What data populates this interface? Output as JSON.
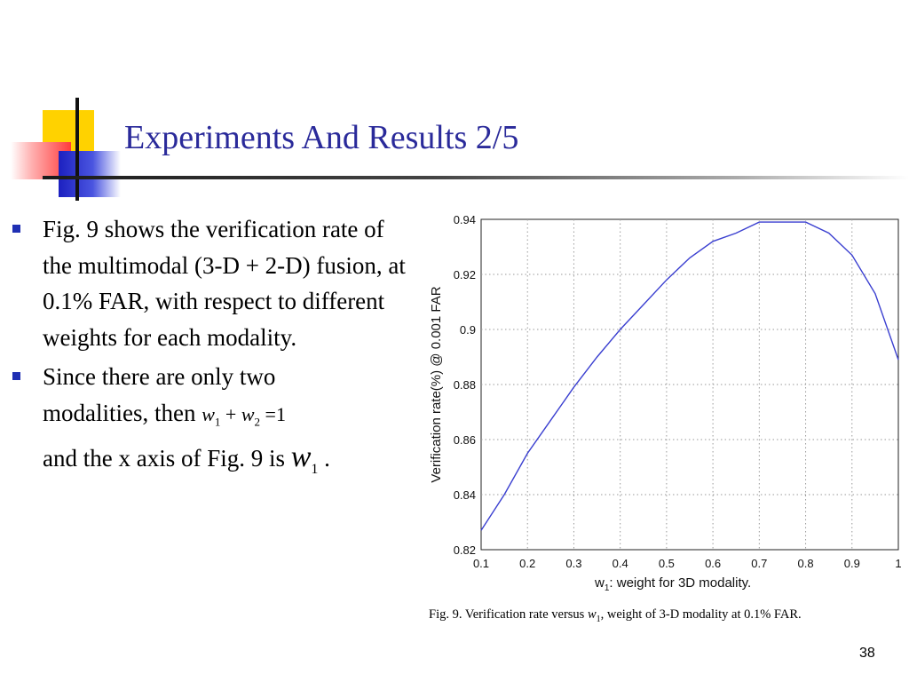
{
  "slide": {
    "title": "Experiments And Results 2/5",
    "page_number": "38"
  },
  "bullets": [
    {
      "text": "Fig. 9 shows the verification rate of the multimodal (3-D + 2-D) fusion, at 0.1% FAR, with respect to different weights for each modality."
    },
    {
      "line1": "Since there are only two",
      "line2_prefix": "modalities, then",
      "eq": {
        "var1": "w",
        "sub1": "1",
        "plus": "+",
        "var2": "w",
        "sub2": "2",
        "equals": "=",
        "rhs": "1"
      },
      "line3_prefix": "and the x axis of Fig. 9 is",
      "axis_var": "w",
      "axis_sub": "1",
      "line3_suffix": "."
    }
  ],
  "caption": {
    "prefix": "Fig. 9.   Verification rate versus",
    "var": "w",
    "sub": "1",
    "suffix": ", weight of 3-D modality at 0.1% FAR."
  },
  "chart_data": {
    "type": "line",
    "xlabel_var": "w",
    "xlabel_sub": "1",
    "xlabel_rest": ": weight for 3D modality.",
    "ylabel": "Verification rate(%) @ 0.001 FAR",
    "xlim": [
      0.1,
      1.0
    ],
    "ylim": [
      0.82,
      0.94
    ],
    "x_ticks": [
      "0.1",
      "0.2",
      "0.3",
      "0.4",
      "0.5",
      "0.6",
      "0.7",
      "0.8",
      "0.9",
      "1"
    ],
    "y_ticks": [
      "0.94",
      "0.92",
      "0.9",
      "0.88",
      "0.86",
      "0.84",
      "0.82"
    ],
    "grid": true,
    "line_color": "#3a3fd0",
    "series": [
      {
        "x": [
          0.1,
          0.15,
          0.2,
          0.25,
          0.3,
          0.35,
          0.4,
          0.45,
          0.5,
          0.55,
          0.6,
          0.65,
          0.7,
          0.75,
          0.8,
          0.85,
          0.9,
          0.95,
          1.0
        ],
        "y": [
          0.827,
          0.84,
          0.855,
          0.867,
          0.879,
          0.89,
          0.9,
          0.909,
          0.918,
          0.926,
          0.932,
          0.935,
          0.939,
          0.939,
          0.939,
          0.935,
          0.927,
          0.913,
          0.889
        ]
      }
    ]
  }
}
